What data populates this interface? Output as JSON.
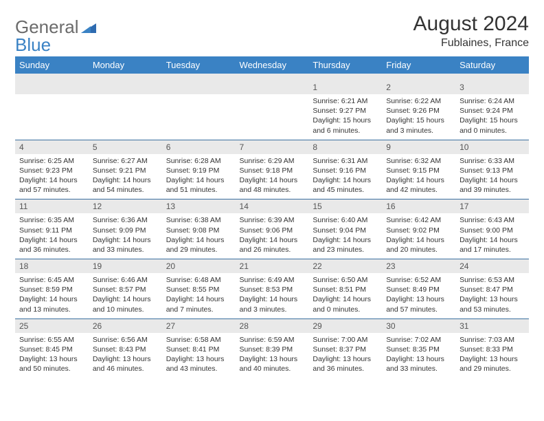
{
  "brand": {
    "part1": "General",
    "part2": "Blue"
  },
  "title": "August 2024",
  "location": "Fublaines, France",
  "colors": {
    "header_bg": "#3a82c4",
    "header_text": "#ffffff",
    "daynum_bg": "#e9e9e9",
    "border": "#3a6fa0",
    "text": "#333333",
    "brand_gray": "#6b6b6b",
    "brand_blue": "#3a82c4"
  },
  "dow": [
    "Sunday",
    "Monday",
    "Tuesday",
    "Wednesday",
    "Thursday",
    "Friday",
    "Saturday"
  ],
  "weeks": [
    [
      {
        "n": "",
        "sr": "",
        "ss": "",
        "dl": ""
      },
      {
        "n": "",
        "sr": "",
        "ss": "",
        "dl": ""
      },
      {
        "n": "",
        "sr": "",
        "ss": "",
        "dl": ""
      },
      {
        "n": "",
        "sr": "",
        "ss": "",
        "dl": ""
      },
      {
        "n": "1",
        "sr": "Sunrise: 6:21 AM",
        "ss": "Sunset: 9:27 PM",
        "dl": "Daylight: 15 hours and 6 minutes."
      },
      {
        "n": "2",
        "sr": "Sunrise: 6:22 AM",
        "ss": "Sunset: 9:26 PM",
        "dl": "Daylight: 15 hours and 3 minutes."
      },
      {
        "n": "3",
        "sr": "Sunrise: 6:24 AM",
        "ss": "Sunset: 9:24 PM",
        "dl": "Daylight: 15 hours and 0 minutes."
      }
    ],
    [
      {
        "n": "4",
        "sr": "Sunrise: 6:25 AM",
        "ss": "Sunset: 9:23 PM",
        "dl": "Daylight: 14 hours and 57 minutes."
      },
      {
        "n": "5",
        "sr": "Sunrise: 6:27 AM",
        "ss": "Sunset: 9:21 PM",
        "dl": "Daylight: 14 hours and 54 minutes."
      },
      {
        "n": "6",
        "sr": "Sunrise: 6:28 AM",
        "ss": "Sunset: 9:19 PM",
        "dl": "Daylight: 14 hours and 51 minutes."
      },
      {
        "n": "7",
        "sr": "Sunrise: 6:29 AM",
        "ss": "Sunset: 9:18 PM",
        "dl": "Daylight: 14 hours and 48 minutes."
      },
      {
        "n": "8",
        "sr": "Sunrise: 6:31 AM",
        "ss": "Sunset: 9:16 PM",
        "dl": "Daylight: 14 hours and 45 minutes."
      },
      {
        "n": "9",
        "sr": "Sunrise: 6:32 AM",
        "ss": "Sunset: 9:15 PM",
        "dl": "Daylight: 14 hours and 42 minutes."
      },
      {
        "n": "10",
        "sr": "Sunrise: 6:33 AM",
        "ss": "Sunset: 9:13 PM",
        "dl": "Daylight: 14 hours and 39 minutes."
      }
    ],
    [
      {
        "n": "11",
        "sr": "Sunrise: 6:35 AM",
        "ss": "Sunset: 9:11 PM",
        "dl": "Daylight: 14 hours and 36 minutes."
      },
      {
        "n": "12",
        "sr": "Sunrise: 6:36 AM",
        "ss": "Sunset: 9:09 PM",
        "dl": "Daylight: 14 hours and 33 minutes."
      },
      {
        "n": "13",
        "sr": "Sunrise: 6:38 AM",
        "ss": "Sunset: 9:08 PM",
        "dl": "Daylight: 14 hours and 29 minutes."
      },
      {
        "n": "14",
        "sr": "Sunrise: 6:39 AM",
        "ss": "Sunset: 9:06 PM",
        "dl": "Daylight: 14 hours and 26 minutes."
      },
      {
        "n": "15",
        "sr": "Sunrise: 6:40 AM",
        "ss": "Sunset: 9:04 PM",
        "dl": "Daylight: 14 hours and 23 minutes."
      },
      {
        "n": "16",
        "sr": "Sunrise: 6:42 AM",
        "ss": "Sunset: 9:02 PM",
        "dl": "Daylight: 14 hours and 20 minutes."
      },
      {
        "n": "17",
        "sr": "Sunrise: 6:43 AM",
        "ss": "Sunset: 9:00 PM",
        "dl": "Daylight: 14 hours and 17 minutes."
      }
    ],
    [
      {
        "n": "18",
        "sr": "Sunrise: 6:45 AM",
        "ss": "Sunset: 8:59 PM",
        "dl": "Daylight: 14 hours and 13 minutes."
      },
      {
        "n": "19",
        "sr": "Sunrise: 6:46 AM",
        "ss": "Sunset: 8:57 PM",
        "dl": "Daylight: 14 hours and 10 minutes."
      },
      {
        "n": "20",
        "sr": "Sunrise: 6:48 AM",
        "ss": "Sunset: 8:55 PM",
        "dl": "Daylight: 14 hours and 7 minutes."
      },
      {
        "n": "21",
        "sr": "Sunrise: 6:49 AM",
        "ss": "Sunset: 8:53 PM",
        "dl": "Daylight: 14 hours and 3 minutes."
      },
      {
        "n": "22",
        "sr": "Sunrise: 6:50 AM",
        "ss": "Sunset: 8:51 PM",
        "dl": "Daylight: 14 hours and 0 minutes."
      },
      {
        "n": "23",
        "sr": "Sunrise: 6:52 AM",
        "ss": "Sunset: 8:49 PM",
        "dl": "Daylight: 13 hours and 57 minutes."
      },
      {
        "n": "24",
        "sr": "Sunrise: 6:53 AM",
        "ss": "Sunset: 8:47 PM",
        "dl": "Daylight: 13 hours and 53 minutes."
      }
    ],
    [
      {
        "n": "25",
        "sr": "Sunrise: 6:55 AM",
        "ss": "Sunset: 8:45 PM",
        "dl": "Daylight: 13 hours and 50 minutes."
      },
      {
        "n": "26",
        "sr": "Sunrise: 6:56 AM",
        "ss": "Sunset: 8:43 PM",
        "dl": "Daylight: 13 hours and 46 minutes."
      },
      {
        "n": "27",
        "sr": "Sunrise: 6:58 AM",
        "ss": "Sunset: 8:41 PM",
        "dl": "Daylight: 13 hours and 43 minutes."
      },
      {
        "n": "28",
        "sr": "Sunrise: 6:59 AM",
        "ss": "Sunset: 8:39 PM",
        "dl": "Daylight: 13 hours and 40 minutes."
      },
      {
        "n": "29",
        "sr": "Sunrise: 7:00 AM",
        "ss": "Sunset: 8:37 PM",
        "dl": "Daylight: 13 hours and 36 minutes."
      },
      {
        "n": "30",
        "sr": "Sunrise: 7:02 AM",
        "ss": "Sunset: 8:35 PM",
        "dl": "Daylight: 13 hours and 33 minutes."
      },
      {
        "n": "31",
        "sr": "Sunrise: 7:03 AM",
        "ss": "Sunset: 8:33 PM",
        "dl": "Daylight: 13 hours and 29 minutes."
      }
    ]
  ]
}
